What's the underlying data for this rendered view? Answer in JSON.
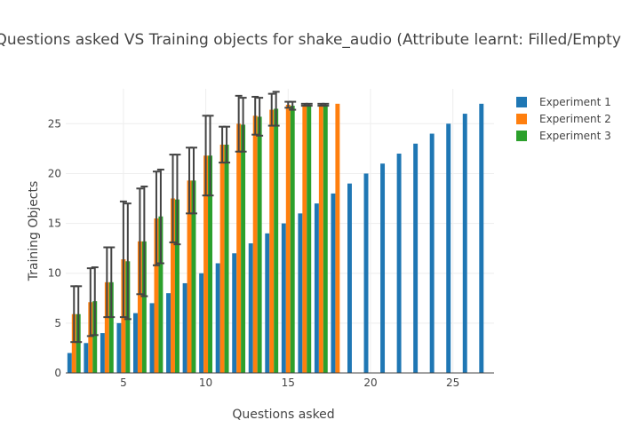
{
  "chart_data": {
    "type": "bar",
    "title": "Questions asked VS Training objects for shake_audio (Attribute learnt: Filled/Empty)",
    "xlabel": "Questions asked",
    "ylabel": "Training Objects",
    "xlim": [
      1.5,
      27.5
    ],
    "ylim": [
      0,
      28.5
    ],
    "x_ticks": [
      5,
      10,
      15,
      20,
      25
    ],
    "y_ticks": [
      0,
      5,
      10,
      15,
      20,
      25
    ],
    "grid": true,
    "legend_position": "top-right",
    "series": [
      {
        "name": "Experiment 1",
        "color": "#1f77b4",
        "x": [
          2,
          3,
          4,
          5,
          6,
          7,
          8,
          9,
          10,
          11,
          12,
          13,
          14,
          15,
          16,
          17,
          18,
          19,
          20,
          21,
          22,
          23,
          24,
          25,
          26,
          27
        ],
        "values": [
          2,
          3,
          4,
          5,
          6,
          7,
          8,
          9,
          10,
          11,
          12,
          13,
          14,
          15,
          16,
          17,
          18,
          19,
          20,
          21,
          22,
          23,
          24,
          25,
          26,
          27
        ]
      },
      {
        "name": "Experiment 2",
        "color": "#ff7f0e",
        "x": [
          2,
          3,
          4,
          5,
          6,
          7,
          8,
          9,
          10,
          11,
          12,
          13,
          14,
          15,
          16,
          17,
          18
        ],
        "values": [
          5.9,
          7.1,
          9.1,
          11.4,
          13.2,
          15.5,
          17.5,
          19.3,
          21.8,
          22.9,
          25.0,
          25.8,
          26.4,
          26.9,
          26.9,
          26.9,
          27.0
        ],
        "error": [
          2.8,
          3.4,
          3.5,
          5.8,
          5.3,
          4.7,
          4.4,
          3.3,
          4.0,
          1.8,
          2.8,
          1.9,
          1.6,
          0.3,
          0.1,
          0.1,
          0.0
        ]
      },
      {
        "name": "Experiment 3",
        "color": "#2ca02c",
        "x": [
          2,
          3,
          4,
          5,
          6,
          7,
          8,
          9,
          10,
          11,
          12,
          13,
          14,
          15,
          16,
          17
        ],
        "values": [
          5.9,
          7.2,
          9.1,
          11.2,
          13.2,
          15.7,
          17.4,
          19.3,
          21.8,
          22.9,
          24.9,
          25.7,
          26.5,
          26.8,
          26.9,
          26.9
        ],
        "error": [
          2.8,
          3.4,
          3.5,
          5.8,
          5.5,
          4.7,
          4.5,
          3.3,
          4.0,
          1.8,
          2.7,
          1.9,
          1.7,
          0.4,
          0.1,
          0.1
        ]
      }
    ]
  }
}
